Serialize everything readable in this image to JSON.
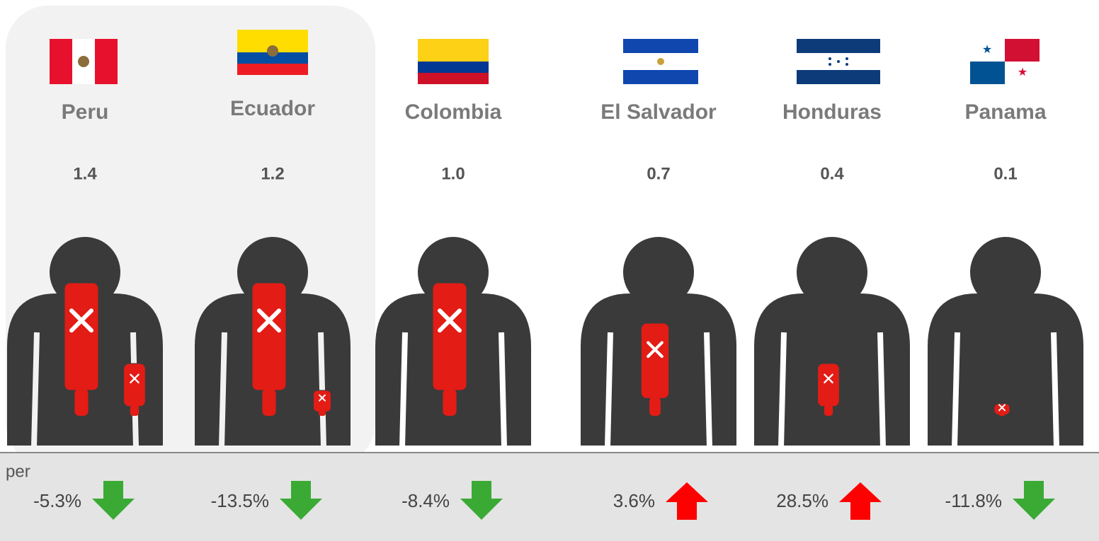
{
  "footer_label": "per",
  "countries": [
    {
      "name": "Peru",
      "value": 1.4,
      "value_label": "1.4",
      "change": -5.3,
      "change_label": "-5.3%"
    },
    {
      "name": "Ecuador",
      "value": 1.2,
      "value_label": "1.2",
      "change": -13.5,
      "change_label": "-13.5%"
    },
    {
      "name": "Colombia",
      "value": 1.0,
      "value_label": "1.0",
      "change": -8.4,
      "change_label": "-8.4%"
    },
    {
      "name": "El Salvador",
      "value": 0.7,
      "value_label": "0.7",
      "change": 3.6,
      "change_label": "3.6%"
    },
    {
      "name": "Honduras",
      "value": 0.4,
      "value_label": "0.4",
      "change": 28.5,
      "change_label": "28.5%"
    },
    {
      "name": "Panama",
      "value": 0.1,
      "value_label": "0.1",
      "change": -11.8,
      "change_label": "-11.8%"
    }
  ]
}
